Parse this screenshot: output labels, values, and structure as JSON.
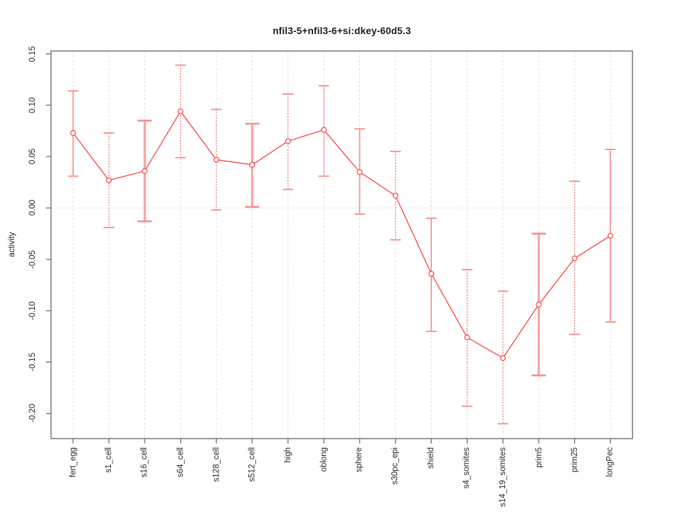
{
  "title": "nfil3-5+nfil3-6+si:dkey-60d5.3",
  "chart_data": {
    "type": "line",
    "title": "nfil3-5+nfil3-6+si:dkey-60d5.3",
    "xlabel": "",
    "ylabel": "activity",
    "ylim": [
      -0.2244,
      0.1528
    ],
    "grid": "vertical-dashed-per-category, dotted-zero-line",
    "legend_position": "none",
    "yticks": [
      0.15,
      0.1,
      0.05,
      0.0,
      -0.05,
      -0.1,
      -0.15,
      -0.2
    ],
    "ytick_labels": [
      "0.15",
      "0.10",
      "0.05",
      "0.00",
      "-0.05",
      "-0.10",
      "-0.15",
      "-0.20"
    ],
    "categories": [
      "fert_egg",
      "s1_cell",
      "s16_cell",
      "s64_cell",
      "s128_cell",
      "s512_cell",
      "high",
      "oblong",
      "sphere",
      "s30pc_epi",
      "shield",
      "s4_somites",
      "s14_19_somites",
      "prim5",
      "prim25",
      "longPec"
    ],
    "series": [
      {
        "name": "activity",
        "marker": "open-circle",
        "values": [
          0.073,
          0.027,
          0.036,
          0.094,
          0.047,
          0.042,
          0.065,
          0.076,
          0.035,
          0.012,
          -0.064,
          -0.126,
          -0.146,
          -0.094,
          -0.049,
          -0.027
        ],
        "ci_high": [
          0.114,
          0.073,
          0.085,
          0.139,
          0.096,
          0.082,
          0.111,
          0.119,
          0.077,
          0.055,
          -0.01,
          -0.06,
          -0.081,
          -0.025,
          0.026,
          0.057
        ],
        "ci_low": [
          0.031,
          -0.019,
          -0.013,
          0.049,
          -0.002,
          0.001,
          0.018,
          0.031,
          -0.006,
          -0.031,
          -0.12,
          -0.193,
          -0.21,
          -0.163,
          -0.123,
          -0.111
        ],
        "error_bar_styles": [
          "solid-medium",
          "dotted",
          "solid-thick",
          "dotted",
          "dotted",
          "solid-thick",
          "dotted",
          "solid-thin",
          "solid-medium",
          "dotted",
          "solid-medium",
          "dotted",
          "dotted",
          "solid-thick",
          "dotted",
          "solid-medium"
        ]
      }
    ],
    "colors": {
      "series_line": "#f84343",
      "marker_stroke": "#f84343",
      "marker_fill": "#ffffff",
      "error_bar_solid": "#f89090",
      "error_bar_thick": "#fba3a3",
      "error_bar_dotted": "#f65252",
      "error_bar_cap": "#f88d8d",
      "gridline": "#dcdcdc",
      "zero_line": "#dedede",
      "box_border": "#7f7f7f",
      "tick": "#7f7f7f",
      "text": "#262626"
    }
  }
}
